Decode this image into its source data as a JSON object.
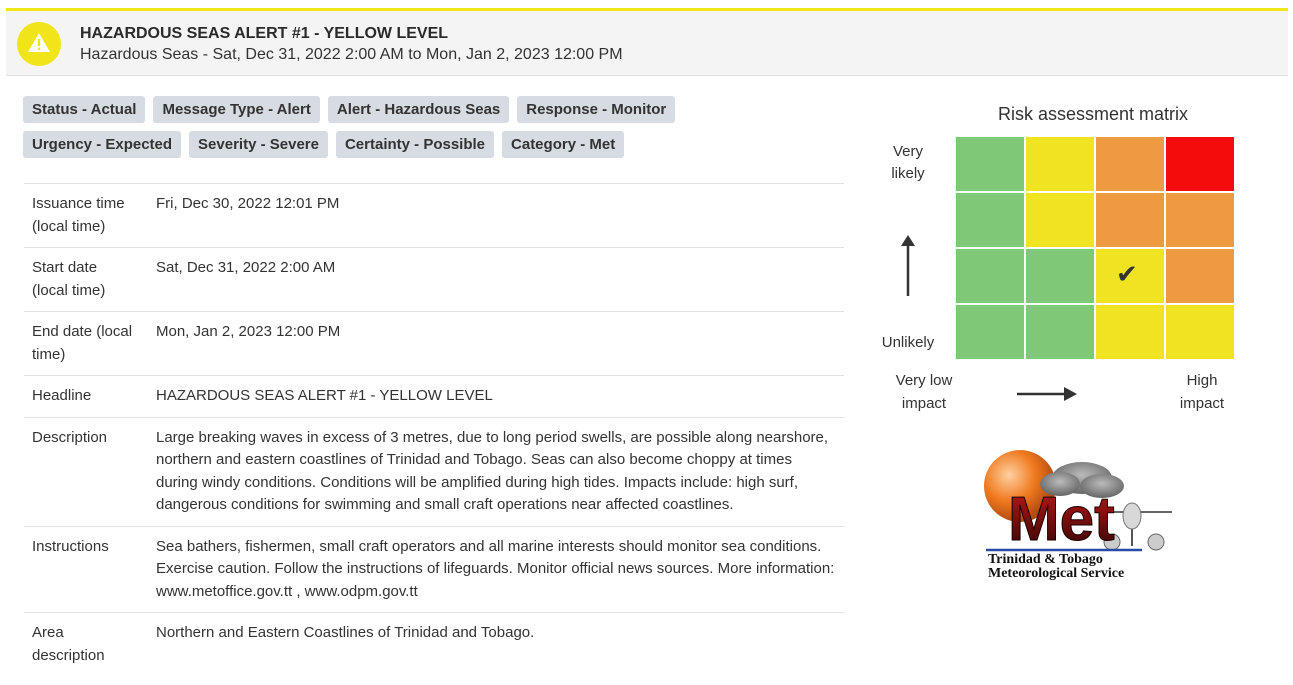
{
  "alert": {
    "title": "HAZARDOUS SEAS ALERT #1 - YELLOW LEVEL",
    "subtitle": "Hazardous Seas - Sat, Dec 31, 2022 2:00 AM to Mon, Jan 2, 2023 12:00 PM",
    "level_color": "#f1e419",
    "icon": "warning-triangle-icon"
  },
  "tags": {
    "row1": [
      "Status - Actual",
      "Message Type - Alert",
      "Alert - Hazardous Seas",
      "Response - Monitor"
    ],
    "row2": [
      "Urgency - Expected",
      "Severity - Severe",
      "Certainty - Possible",
      "Category - Met"
    ]
  },
  "details": {
    "issuance": {
      "label": "Issuance time (local time)",
      "value": "Fri, Dec 30, 2022 12:01 PM"
    },
    "start": {
      "label": "Start date (local time)",
      "value": "Sat, Dec 31, 2022 2:00 AM"
    },
    "end": {
      "label": "End date (local time)",
      "value": "Mon, Jan 2, 2023 12:00 PM"
    },
    "headline": {
      "label": "Headline",
      "value": "HAZARDOUS SEAS ALERT #1 - YELLOW LEVEL"
    },
    "description": {
      "label": "Description",
      "value": "Large breaking waves in excess of 3 metres, due to long period swells, are possible along nearshore, northern and eastern coastlines of Trinidad and Tobago. Seas can also become choppy at times during windy conditions. Conditions will be amplified during high tides. Impacts include: high surf, dangerous conditions for swimming and small craft operations near affected coastlines."
    },
    "instructions": {
      "label": "Instructions",
      "value": "Sea bathers, fishermen, small craft operators and all marine interests should monitor sea conditions. Exercise caution. Follow the instructions of lifeguards. Monitor official news sources. More information: www.metoffice.gov.tt , www.odpm.gov.tt"
    },
    "area": {
      "label": "Area description",
      "value": "Northern and Eastern Coastlines of Trinidad and Tobago."
    }
  },
  "risk_matrix": {
    "title": "Risk assessment matrix",
    "y_top": "Very likely",
    "y_bottom": "Unlikely",
    "x_left": "Very low impact",
    "x_right": "High impact",
    "colors": {
      "green": "#7ec878",
      "yellow": "#f0e422",
      "orange": "#ee9a40",
      "red": "#f40c0c"
    },
    "rows": [
      [
        "green",
        "yellow",
        "orange",
        "red"
      ],
      [
        "green",
        "yellow",
        "orange",
        "orange"
      ],
      [
        "green",
        "green",
        "yellow",
        "orange"
      ],
      [
        "green",
        "green",
        "yellow",
        "yellow"
      ]
    ],
    "selected": {
      "row": 3,
      "col": 3
    }
  },
  "logo": {
    "text": "Met",
    "line1": "Trinidad & Tobago",
    "line2": "Meteorological Service"
  }
}
